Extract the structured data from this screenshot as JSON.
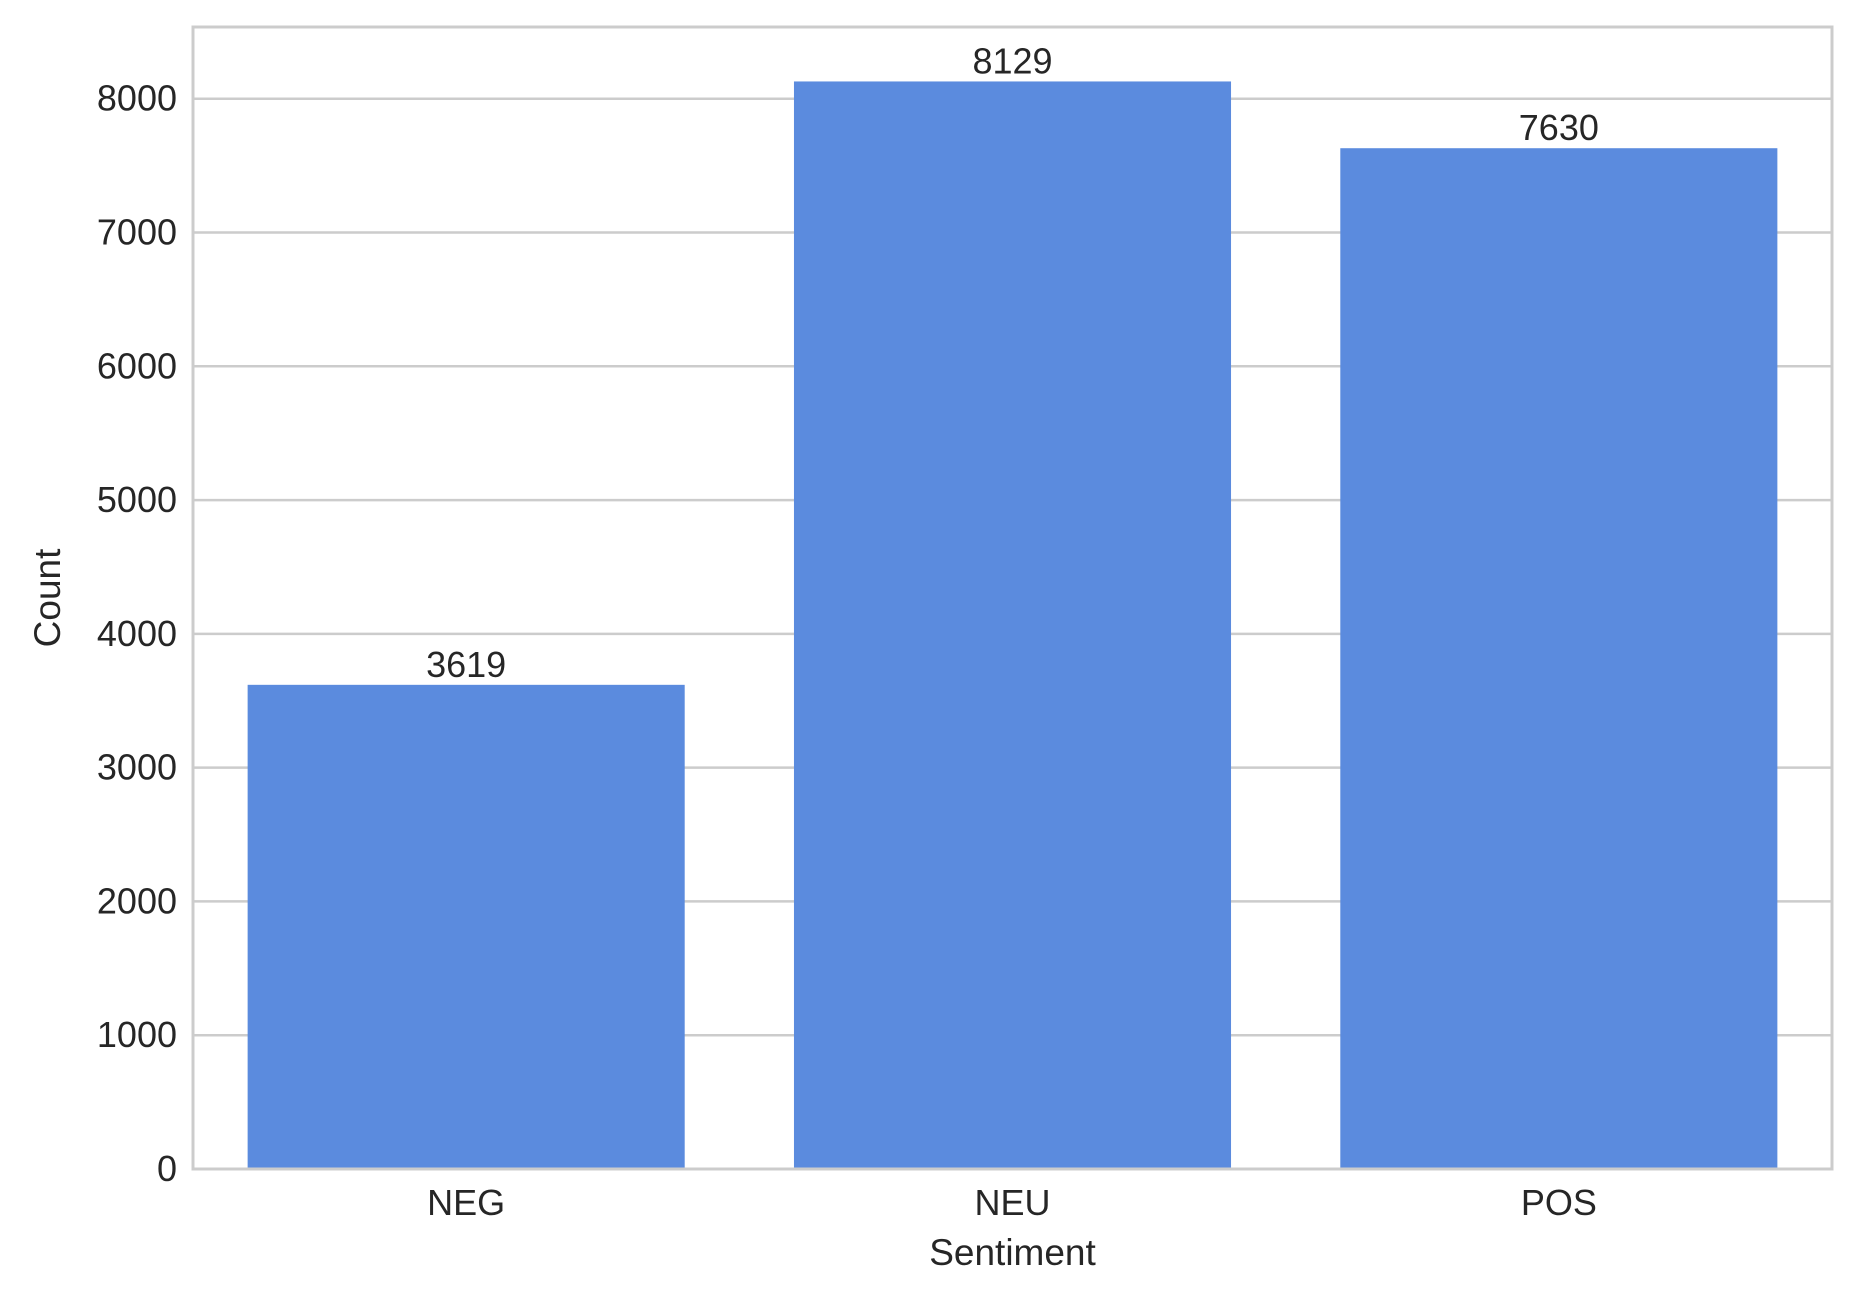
{
  "chart_data": {
    "type": "bar",
    "title": "",
    "xlabel": "Sentiment",
    "ylabel": "Count",
    "categories": [
      "NEG",
      "NEU",
      "POS"
    ],
    "values": [
      3619,
      8129,
      7630
    ],
    "data_labels": [
      "3619",
      "8129",
      "7630"
    ],
    "ylim": [
      0,
      8536
    ],
    "yticks": [
      0,
      1000,
      2000,
      3000,
      4000,
      5000,
      6000,
      7000,
      8000
    ],
    "ytick_labels": [
      "0",
      "1000",
      "2000",
      "3000",
      "4000",
      "5000",
      "6000",
      "7000",
      "8000"
    ],
    "grid": "horizontal",
    "bar_color": "#5b8bde",
    "grid_color": "#cccccc",
    "spine_color": "#cccccc"
  }
}
